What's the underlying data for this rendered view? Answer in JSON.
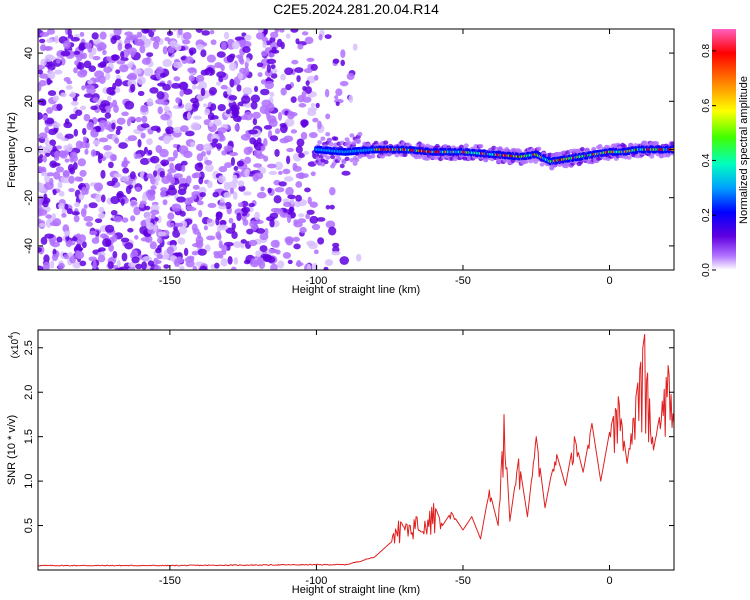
{
  "title": "C2E5.2024.281.20.04.R14",
  "chart_data": [
    {
      "type": "heatmap",
      "xlabel": "Height of straight line (km)",
      "ylabel": "Frequency (Hz)",
      "xlim": [
        -195,
        22
      ],
      "ylim": [
        -50,
        50
      ],
      "x_ticks": [
        "-150",
        "-100",
        "-50",
        "0"
      ],
      "x_tick_values": [
        -150,
        -100,
        -50,
        0
      ],
      "y_ticks": [
        "40",
        "20",
        "0",
        "-20",
        "-40"
      ],
      "y_tick_values": [
        40,
        20,
        0,
        -20,
        -40
      ],
      "colorbar": {
        "label": "Normalized spectral amplitude",
        "range": [
          0,
          0.88
        ],
        "ticks": [
          "0.0",
          "0.2",
          "0.4",
          "0.6",
          "0.8"
        ],
        "tick_values": [
          0.0,
          0.2,
          0.4,
          0.6,
          0.8
        ],
        "colors": [
          "#ffffff",
          "#b070ff",
          "#6000e0",
          "#0000ff",
          "#00a0ff",
          "#00ffc0",
          "#40ff00",
          "#ffff00",
          "#ff8000",
          "#ff0000",
          "#ff60c0"
        ]
      },
      "ridge": [
        {
          "x": -100,
          "y": 0
        },
        {
          "x": -90,
          "y": -1
        },
        {
          "x": -80,
          "y": 0
        },
        {
          "x": -70,
          "y": 0
        },
        {
          "x": -60,
          "y": -1
        },
        {
          "x": -50,
          "y": -1
        },
        {
          "x": -40,
          "y": -2
        },
        {
          "x": -30,
          "y": -3
        },
        {
          "x": -25,
          "y": -2
        },
        {
          "x": -20,
          "y": -5
        },
        {
          "x": -15,
          "y": -4
        },
        {
          "x": -10,
          "y": -3
        },
        {
          "x": -5,
          "y": -2
        },
        {
          "x": 0,
          "y": -1
        },
        {
          "x": 5,
          "y": -1
        },
        {
          "x": 10,
          "y": 0
        },
        {
          "x": 15,
          "y": 0
        },
        {
          "x": 22,
          "y": 0
        }
      ],
      "noise_region_x": [
        -195,
        -85
      ],
      "signal_region_x": [
        -100,
        22
      ]
    },
    {
      "type": "line",
      "xlabel": "Height of straight line (km)",
      "ylabel": "SNR (10 * v/v)",
      "multiplier_label": "(x10",
      "multiplier_exp": "4",
      "xlim": [
        -195,
        22
      ],
      "ylim": [
        0,
        2.7
      ],
      "x_ticks": [
        "-150",
        "-100",
        "-50",
        "0"
      ],
      "x_tick_values": [
        -150,
        -100,
        -50,
        0
      ],
      "y_ticks": [
        "0.5",
        "1.0",
        "1.5",
        "2.0",
        "2.5"
      ],
      "y_tick_values": [
        0.5,
        1.0,
        1.5,
        2.0,
        2.5
      ],
      "color": "#e02020",
      "series": [
        {
          "x": [
            -195,
            -150,
            -100,
            -90,
            -85,
            -80,
            -75,
            -72,
            -68,
            -66,
            -63,
            -60,
            -57,
            -54,
            -50,
            -47,
            -44,
            -41,
            -38,
            -36,
            -34,
            -31,
            -28,
            -25,
            -22,
            -20,
            -18,
            -15,
            -12,
            -9,
            -6,
            -3,
            0,
            3,
            6,
            9,
            12,
            15,
            18,
            20,
            22
          ],
          "y": [
            0.05,
            0.05,
            0.06,
            0.06,
            0.1,
            0.15,
            0.3,
            0.55,
            0.5,
            0.6,
            0.55,
            0.75,
            0.5,
            0.65,
            0.45,
            0.6,
            0.35,
            0.9,
            0.5,
            1.75,
            0.55,
            1.25,
            0.6,
            1.5,
            0.7,
            1.05,
            1.3,
            0.95,
            1.5,
            1.1,
            1.65,
            1.0,
            1.55,
            1.95,
            1.2,
            1.95,
            2.65,
            1.35,
            1.9,
            2.3,
            1.65
          ]
        }
      ]
    }
  ]
}
